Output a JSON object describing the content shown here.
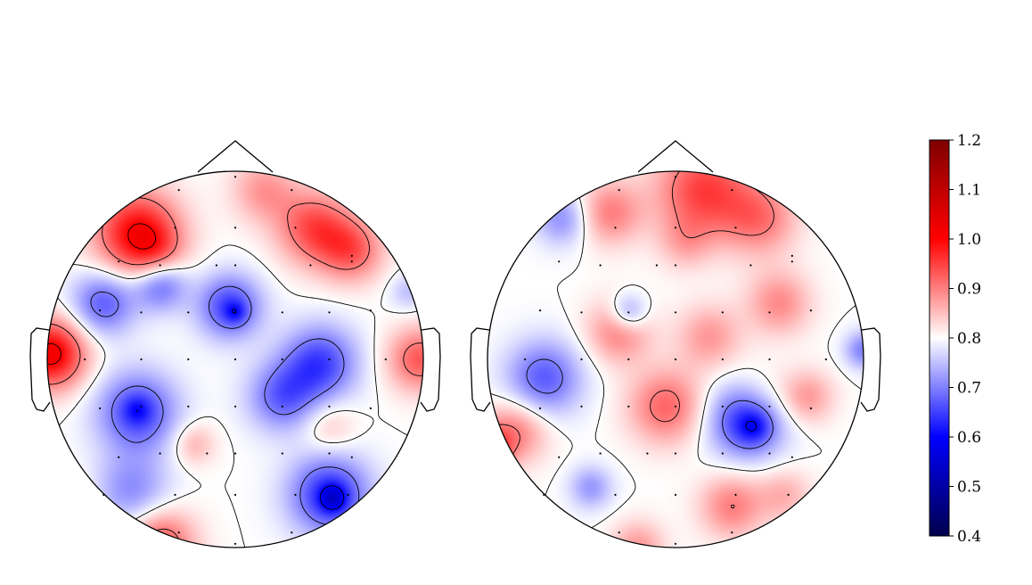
{
  "chart_data": [
    {
      "type": "heatmap",
      "title": "",
      "colormap": "seismic",
      "vmin": 0.4,
      "vmax": 1.2,
      "contours": true,
      "sensors": [
        [
          -0.3,
          0.9
        ],
        [
          0.0,
          0.97
        ],
        [
          0.3,
          0.9
        ],
        [
          -0.32,
          0.7
        ],
        [
          0.0,
          0.7
        ],
        [
          0.32,
          0.7
        ],
        [
          0.62,
          0.52
        ],
        [
          -0.62,
          0.52
        ],
        [
          -0.4,
          0.5
        ],
        [
          -0.1,
          0.5
        ],
        [
          0.0,
          0.5
        ],
        [
          0.4,
          0.5
        ],
        [
          0.62,
          0.55
        ],
        [
          -0.72,
          0.26
        ],
        [
          -0.5,
          0.25
        ],
        [
          -0.25,
          0.25
        ],
        [
          0.0,
          0.25
        ],
        [
          0.25,
          0.25
        ],
        [
          0.5,
          0.25
        ],
        [
          0.72,
          0.26
        ],
        [
          -0.8,
          0.0
        ],
        [
          -0.5,
          0.0
        ],
        [
          -0.25,
          0.0
        ],
        [
          0.0,
          0.0
        ],
        [
          0.25,
          0.0
        ],
        [
          0.5,
          0.0
        ],
        [
          0.8,
          0.0
        ],
        [
          -0.72,
          -0.26
        ],
        [
          -0.5,
          -0.25
        ],
        [
          -0.25,
          -0.25
        ],
        [
          0.0,
          -0.25
        ],
        [
          0.25,
          -0.25
        ],
        [
          0.5,
          -0.25
        ],
        [
          0.72,
          -0.26
        ],
        [
          -0.62,
          -0.52
        ],
        [
          -0.4,
          -0.5
        ],
        [
          -0.15,
          -0.5
        ],
        [
          0.0,
          -0.5
        ],
        [
          0.25,
          -0.5
        ],
        [
          0.5,
          -0.5
        ],
        [
          0.62,
          -0.52
        ],
        [
          -0.7,
          -0.72
        ],
        [
          -0.32,
          -0.72
        ],
        [
          0.0,
          -0.72
        ],
        [
          0.32,
          -0.72
        ],
        [
          0.6,
          -0.72
        ],
        [
          -0.3,
          -0.92
        ],
        [
          0.0,
          -0.98
        ],
        [
          0.3,
          -0.92
        ]
      ],
      "blobs": [
        {
          "x": -0.52,
          "y": 0.67,
          "s": 0.16,
          "a": 0.2
        },
        {
          "x": -0.42,
          "y": 0.56,
          "s": 0.1,
          "a": 0.06
        },
        {
          "x": 0.42,
          "y": 0.7,
          "s": 0.14,
          "a": 0.14
        },
        {
          "x": 0.62,
          "y": 0.58,
          "s": 0.12,
          "a": 0.12
        },
        {
          "x": 0.15,
          "y": 0.9,
          "s": 0.12,
          "a": 0.08
        },
        {
          "x": -0.98,
          "y": 0.03,
          "s": 0.13,
          "a": 0.22
        },
        {
          "x": 0.98,
          "y": 0.0,
          "s": 0.12,
          "a": 0.13
        },
        {
          "x": -0.7,
          "y": 0.3,
          "s": 0.12,
          "a": -0.13
        },
        {
          "x": -0.4,
          "y": 0.4,
          "s": 0.1,
          "a": -0.13
        },
        {
          "x": -0.03,
          "y": 0.28,
          "s": 0.12,
          "a": -0.15
        },
        {
          "x": 0.0,
          "y": 0.25,
          "s": 0.04,
          "a": -0.06
        },
        {
          "x": 0.45,
          "y": -0.02,
          "s": 0.14,
          "a": -0.15
        },
        {
          "x": 0.25,
          "y": -0.2,
          "s": 0.13,
          "a": -0.12
        },
        {
          "x": -0.52,
          "y": -0.28,
          "s": 0.15,
          "a": -0.15
        },
        {
          "x": -0.52,
          "y": -0.27,
          "s": 0.05,
          "a": -0.05
        },
        {
          "x": -0.22,
          "y": -0.45,
          "s": 0.08,
          "a": 0.06
        },
        {
          "x": 0.5,
          "y": -0.36,
          "s": 0.1,
          "a": 0.05
        },
        {
          "x": 0.5,
          "y": -0.72,
          "s": 0.15,
          "a": -0.17
        },
        {
          "x": 0.52,
          "y": -0.74,
          "s": 0.05,
          "a": -0.1
        },
        {
          "x": -0.55,
          "y": -0.7,
          "s": 0.14,
          "a": -0.09
        },
        {
          "x": -0.4,
          "y": -0.98,
          "s": 0.13,
          "a": 0.14
        },
        {
          "x": -0.95,
          "y": -0.8,
          "s": 0.12,
          "a": 0.08
        },
        {
          "x": 0.92,
          "y": 0.36,
          "s": 0.07,
          "a": -0.05
        }
      ]
    },
    {
      "type": "heatmap",
      "title": "",
      "colormap": "seismic",
      "vmin": 0.4,
      "vmax": 1.2,
      "contours": true,
      "sensors": [
        [
          -0.3,
          0.9
        ],
        [
          0.0,
          0.97
        ],
        [
          0.3,
          0.9
        ],
        [
          -0.32,
          0.7
        ],
        [
          0.0,
          0.7
        ],
        [
          0.32,
          0.7
        ],
        [
          0.62,
          0.52
        ],
        [
          -0.62,
          0.52
        ],
        [
          -0.4,
          0.5
        ],
        [
          -0.1,
          0.5
        ],
        [
          0.0,
          0.5
        ],
        [
          0.4,
          0.5
        ],
        [
          0.62,
          0.55
        ],
        [
          -0.72,
          0.26
        ],
        [
          -0.5,
          0.25
        ],
        [
          -0.25,
          0.25
        ],
        [
          0.0,
          0.25
        ],
        [
          0.25,
          0.25
        ],
        [
          0.5,
          0.25
        ],
        [
          0.72,
          0.26
        ],
        [
          -0.8,
          0.0
        ],
        [
          -0.5,
          0.0
        ],
        [
          -0.25,
          0.0
        ],
        [
          0.0,
          0.0
        ],
        [
          0.25,
          0.0
        ],
        [
          0.5,
          0.0
        ],
        [
          0.8,
          0.0
        ],
        [
          -0.72,
          -0.26
        ],
        [
          -0.5,
          -0.25
        ],
        [
          -0.25,
          -0.25
        ],
        [
          0.0,
          -0.25
        ],
        [
          0.25,
          -0.25
        ],
        [
          0.5,
          -0.25
        ],
        [
          0.72,
          -0.26
        ],
        [
          -0.62,
          -0.52
        ],
        [
          -0.4,
          -0.5
        ],
        [
          -0.15,
          -0.5
        ],
        [
          0.0,
          -0.5
        ],
        [
          0.25,
          -0.5
        ],
        [
          0.5,
          -0.5
        ],
        [
          0.62,
          -0.52
        ],
        [
          -0.7,
          -0.72
        ],
        [
          -0.32,
          -0.72
        ],
        [
          0.0,
          -0.72
        ],
        [
          0.32,
          -0.72
        ],
        [
          0.6,
          -0.72
        ],
        [
          -0.3,
          -0.92
        ],
        [
          0.0,
          -0.98
        ],
        [
          0.3,
          -0.92
        ]
      ],
      "blobs": [
        {
          "x": 0.15,
          "y": 0.9,
          "s": 0.18,
          "a": 0.15
        },
        {
          "x": -0.35,
          "y": 0.78,
          "s": 0.12,
          "a": 0.1
        },
        {
          "x": 0.45,
          "y": 0.75,
          "s": 0.14,
          "a": 0.1
        },
        {
          "x": 0.55,
          "y": 0.3,
          "s": 0.12,
          "a": 0.09
        },
        {
          "x": 0.18,
          "y": 0.12,
          "s": 0.12,
          "a": 0.08
        },
        {
          "x": -0.3,
          "y": 0.15,
          "s": 0.12,
          "a": 0.1
        },
        {
          "x": -0.05,
          "y": -0.25,
          "s": 0.14,
          "a": 0.12
        },
        {
          "x": 0.45,
          "y": -0.2,
          "s": 0.12,
          "a": 0.05
        },
        {
          "x": -0.85,
          "y": -0.38,
          "s": 0.12,
          "a": 0.1
        },
        {
          "x": -1.0,
          "y": -0.48,
          "s": 0.08,
          "a": 0.18
        },
        {
          "x": 0.7,
          "y": -0.2,
          "s": 0.1,
          "a": 0.08
        },
        {
          "x": 0.3,
          "y": -0.78,
          "s": 0.12,
          "a": 0.1
        },
        {
          "x": 0.58,
          "y": -0.72,
          "s": 0.1,
          "a": 0.06
        },
        {
          "x": -0.2,
          "y": -1.0,
          "s": 0.1,
          "a": 0.08
        },
        {
          "x": 0.05,
          "y": 0.62,
          "s": 0.1,
          "a": 0.05
        },
        {
          "x": 0.38,
          "y": -0.32,
          "s": 0.14,
          "a": -0.18
        },
        {
          "x": 0.42,
          "y": -0.36,
          "s": 0.06,
          "a": -0.06
        },
        {
          "x": -0.7,
          "y": -0.1,
          "s": 0.14,
          "a": -0.13
        },
        {
          "x": -0.25,
          "y": 0.25,
          "s": 0.07,
          "a": -0.1
        },
        {
          "x": -0.6,
          "y": 0.75,
          "s": 0.1,
          "a": -0.09
        },
        {
          "x": 1.0,
          "y": 0.05,
          "s": 0.07,
          "a": -0.1
        },
        {
          "x": -0.45,
          "y": -0.68,
          "s": 0.08,
          "a": -0.08
        }
      ]
    }
  ],
  "colorbar": {
    "cmap": "seismic",
    "min": 0.4,
    "max": 1.2,
    "ticks": [
      "0.4",
      "0.5",
      "0.6",
      "0.7",
      "0.8",
      "0.9",
      "1.0",
      "1.1",
      "1.2"
    ]
  }
}
